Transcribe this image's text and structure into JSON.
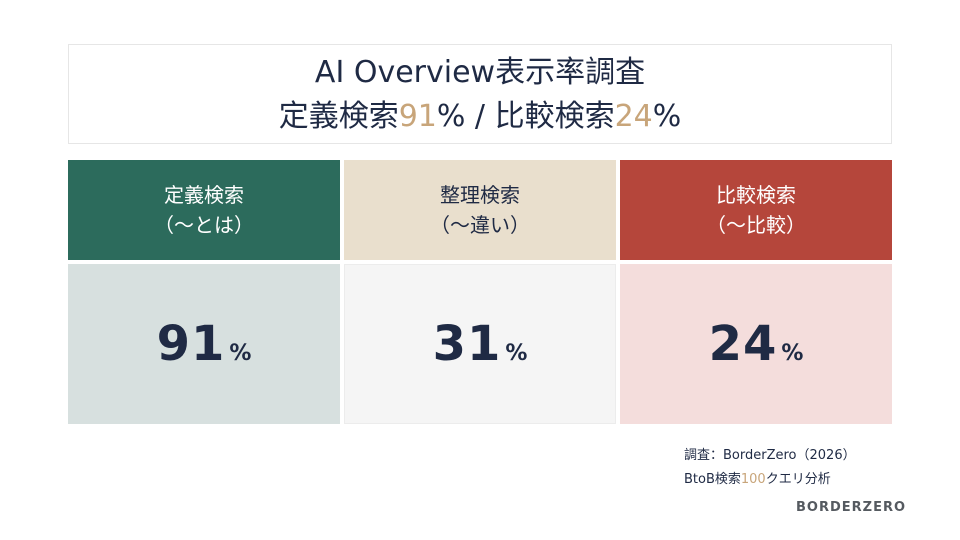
{
  "title": {
    "line1": "AI Overview表示率調査",
    "line2_part1": "定義検索",
    "line2_value1": "91",
    "line2_part2": "% / 比較検索",
    "line2_value2": "24",
    "line2_part3": "%"
  },
  "columns": [
    {
      "label": "定義検索",
      "sublabel": "（〜とは）",
      "value": "91",
      "unit": "%"
    },
    {
      "label": "整理検索",
      "sublabel": "（〜違い）",
      "value": "31",
      "unit": "%"
    },
    {
      "label": "比較検索",
      "sublabel": "（〜比較）",
      "value": "24",
      "unit": "%"
    }
  ],
  "source": {
    "line1": "調査：BorderZero（2026）",
    "line2_prefix": "BtoB検索",
    "line2_value": "100",
    "line2_suffix": "クエリ分析"
  },
  "logo": "BORDERZERO",
  "colors": {
    "dark_green": "#2c6b5c",
    "beige": "#e9dfcd",
    "red": "#b5463b",
    "accent_gold": "#c8a57a",
    "navy": "#1f2a44"
  }
}
